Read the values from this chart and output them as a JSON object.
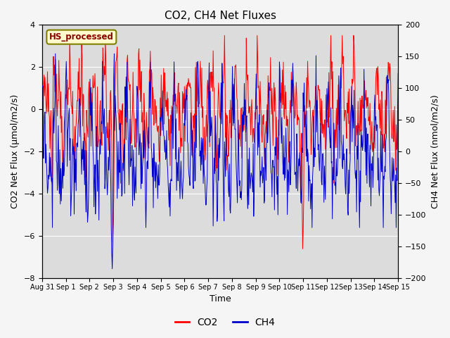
{
  "title": "CO2, CH4 Net Fluxes",
  "xlabel": "Time",
  "ylabel_left": "CO2 Net Flux (μmol/m2/s)",
  "ylabel_right": "CH4 Net Flux (nmol/m2/s)",
  "annotation": "HS_processed",
  "ylim_left": [
    -8,
    4
  ],
  "ylim_right": [
    -200,
    200
  ],
  "yticks_left": [
    -8,
    -6,
    -4,
    -2,
    0,
    2,
    4
  ],
  "yticks_right": [
    -200,
    -150,
    -100,
    -50,
    0,
    50,
    100,
    150,
    200
  ],
  "xtick_labels": [
    "Aug 31",
    "Sep 1",
    "Sep 2",
    "Sep 3",
    "Sep 4",
    "Sep 5",
    "Sep 6",
    "Sep 7",
    "Sep 8",
    "Sep 9",
    "Sep 10",
    "Sep 11",
    "Sep 12",
    "Sep 13",
    "Sep 14",
    "Sep 15"
  ],
  "co2_color": "#FF0000",
  "ch4_color": "#0000CC",
  "linewidth": 0.7,
  "legend_co2": "CO2",
  "legend_ch4": "CH4",
  "plot_bg_color": "#DCDCDC",
  "fig_bg_color": "#F5F5F5",
  "title_fontsize": 11,
  "label_fontsize": 9,
  "tick_fontsize": 8,
  "seed": 42
}
